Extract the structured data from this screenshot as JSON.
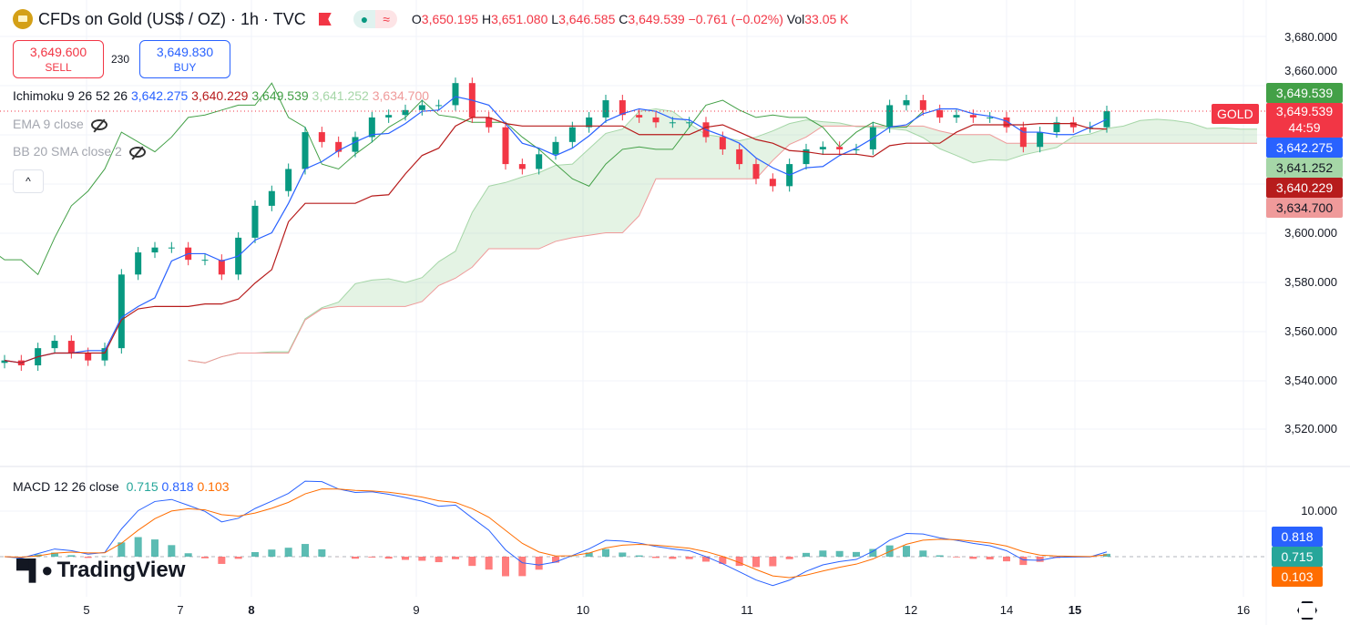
{
  "header": {
    "title": "CFDs on Gold (US$ / OZ) · 1h · TVC",
    "ohlc": {
      "o_label": "O",
      "o": "3,650.195",
      "h_label": "H",
      "h": "3,651.080",
      "l_label": "L",
      "l": "3,646.585",
      "c_label": "C",
      "c": "3,649.539",
      "change": "−0.761 (−0.02%)",
      "vol_label": "Vol",
      "vol": "33.05 K"
    },
    "status_icons": [
      "market-open-dot-icon",
      "wave-icon"
    ]
  },
  "trade": {
    "sell_price": "3,649.600",
    "sell_label": "SELL",
    "spread": "230",
    "buy_price": "3,649.830",
    "buy_label": "BUY"
  },
  "legend": {
    "ichimoku_name": "Ichimoku 9 26 52 26",
    "ichimoku_values": [
      "3,642.275",
      "3,640.229",
      "3,649.539",
      "3,641.252",
      "3,634.700"
    ],
    "ema": "EMA 9 close",
    "bb": "BB 20 SMA close 2",
    "collapse": "^"
  },
  "macd": {
    "name": "MACD 12 26 close",
    "values": [
      "0.715",
      "0.818",
      "0.103"
    ]
  },
  "price_axis": {
    "ticks": [
      "3,680.000",
      "3,660.000",
      "3,600.000",
      "3,580.000",
      "3,560.000",
      "3,540.000",
      "3,520.000"
    ],
    "symbol_tag": "GOLD",
    "labels": [
      {
        "value": "3,649.539",
        "color": "#43a047"
      },
      {
        "value": "3,649.539",
        "sub": "44:59",
        "color": "#f23645"
      },
      {
        "value": "3,642.275",
        "color": "#2962ff"
      },
      {
        "value": "3,641.252",
        "color": "#a5d6a7"
      },
      {
        "value": "3,640.229",
        "color": "#b71c1c"
      },
      {
        "value": "3,634.700",
        "color": "#ef9a9a"
      }
    ]
  },
  "macd_axis": {
    "tick": "10.000",
    "labels": [
      {
        "value": "0.818",
        "color": "#2962ff"
      },
      {
        "value": "0.715",
        "color": "#26a69a"
      },
      {
        "value": "0.103",
        "color": "#ff6d00"
      }
    ]
  },
  "time_axis": [
    {
      "label": "5",
      "bold": false
    },
    {
      "label": "7",
      "bold": false
    },
    {
      "label": "8",
      "bold": true
    },
    {
      "label": "9",
      "bold": false
    },
    {
      "label": "10",
      "bold": false
    },
    {
      "label": "11",
      "bold": false
    },
    {
      "label": "12",
      "bold": false
    },
    {
      "label": "14",
      "bold": false
    },
    {
      "label": "15",
      "bold": true
    },
    {
      "label": "16",
      "bold": false
    }
  ],
  "brand": "TradingView",
  "colors": {
    "up": "#089981",
    "down": "#f23645",
    "tenkan": "#2962ff",
    "kijun": "#b71c1c",
    "chikou": "#43a047",
    "cloud_up": "#a5d6a7",
    "cloud_down": "#ef9a9a"
  },
  "chart_data": {
    "type": "candlestick",
    "ylim": [
      3510,
      3690
    ],
    "closes": [
      3548,
      3546,
      3553,
      3556,
      3551,
      3548,
      3553,
      3583,
      3592,
      3594,
      3594,
      3589,
      3589,
      3583,
      3598,
      3611,
      3617,
      3626,
      3641,
      3637,
      3633,
      3639,
      3647,
      3648,
      3650,
      3652,
      3652,
      3661,
      3647,
      3643,
      3628,
      3626,
      3632,
      3637,
      3643,
      3647,
      3654,
      3648,
      3647,
      3645,
      3645,
      3645,
      3639,
      3634,
      3628,
      3622,
      3619,
      3628,
      3634,
      3635,
      3634,
      3634,
      3643,
      3652,
      3654,
      3650,
      3647,
      3648,
      3647,
      3647,
      3643,
      3635,
      3641,
      3645,
      3643,
      3643,
      3649.539
    ]
  }
}
